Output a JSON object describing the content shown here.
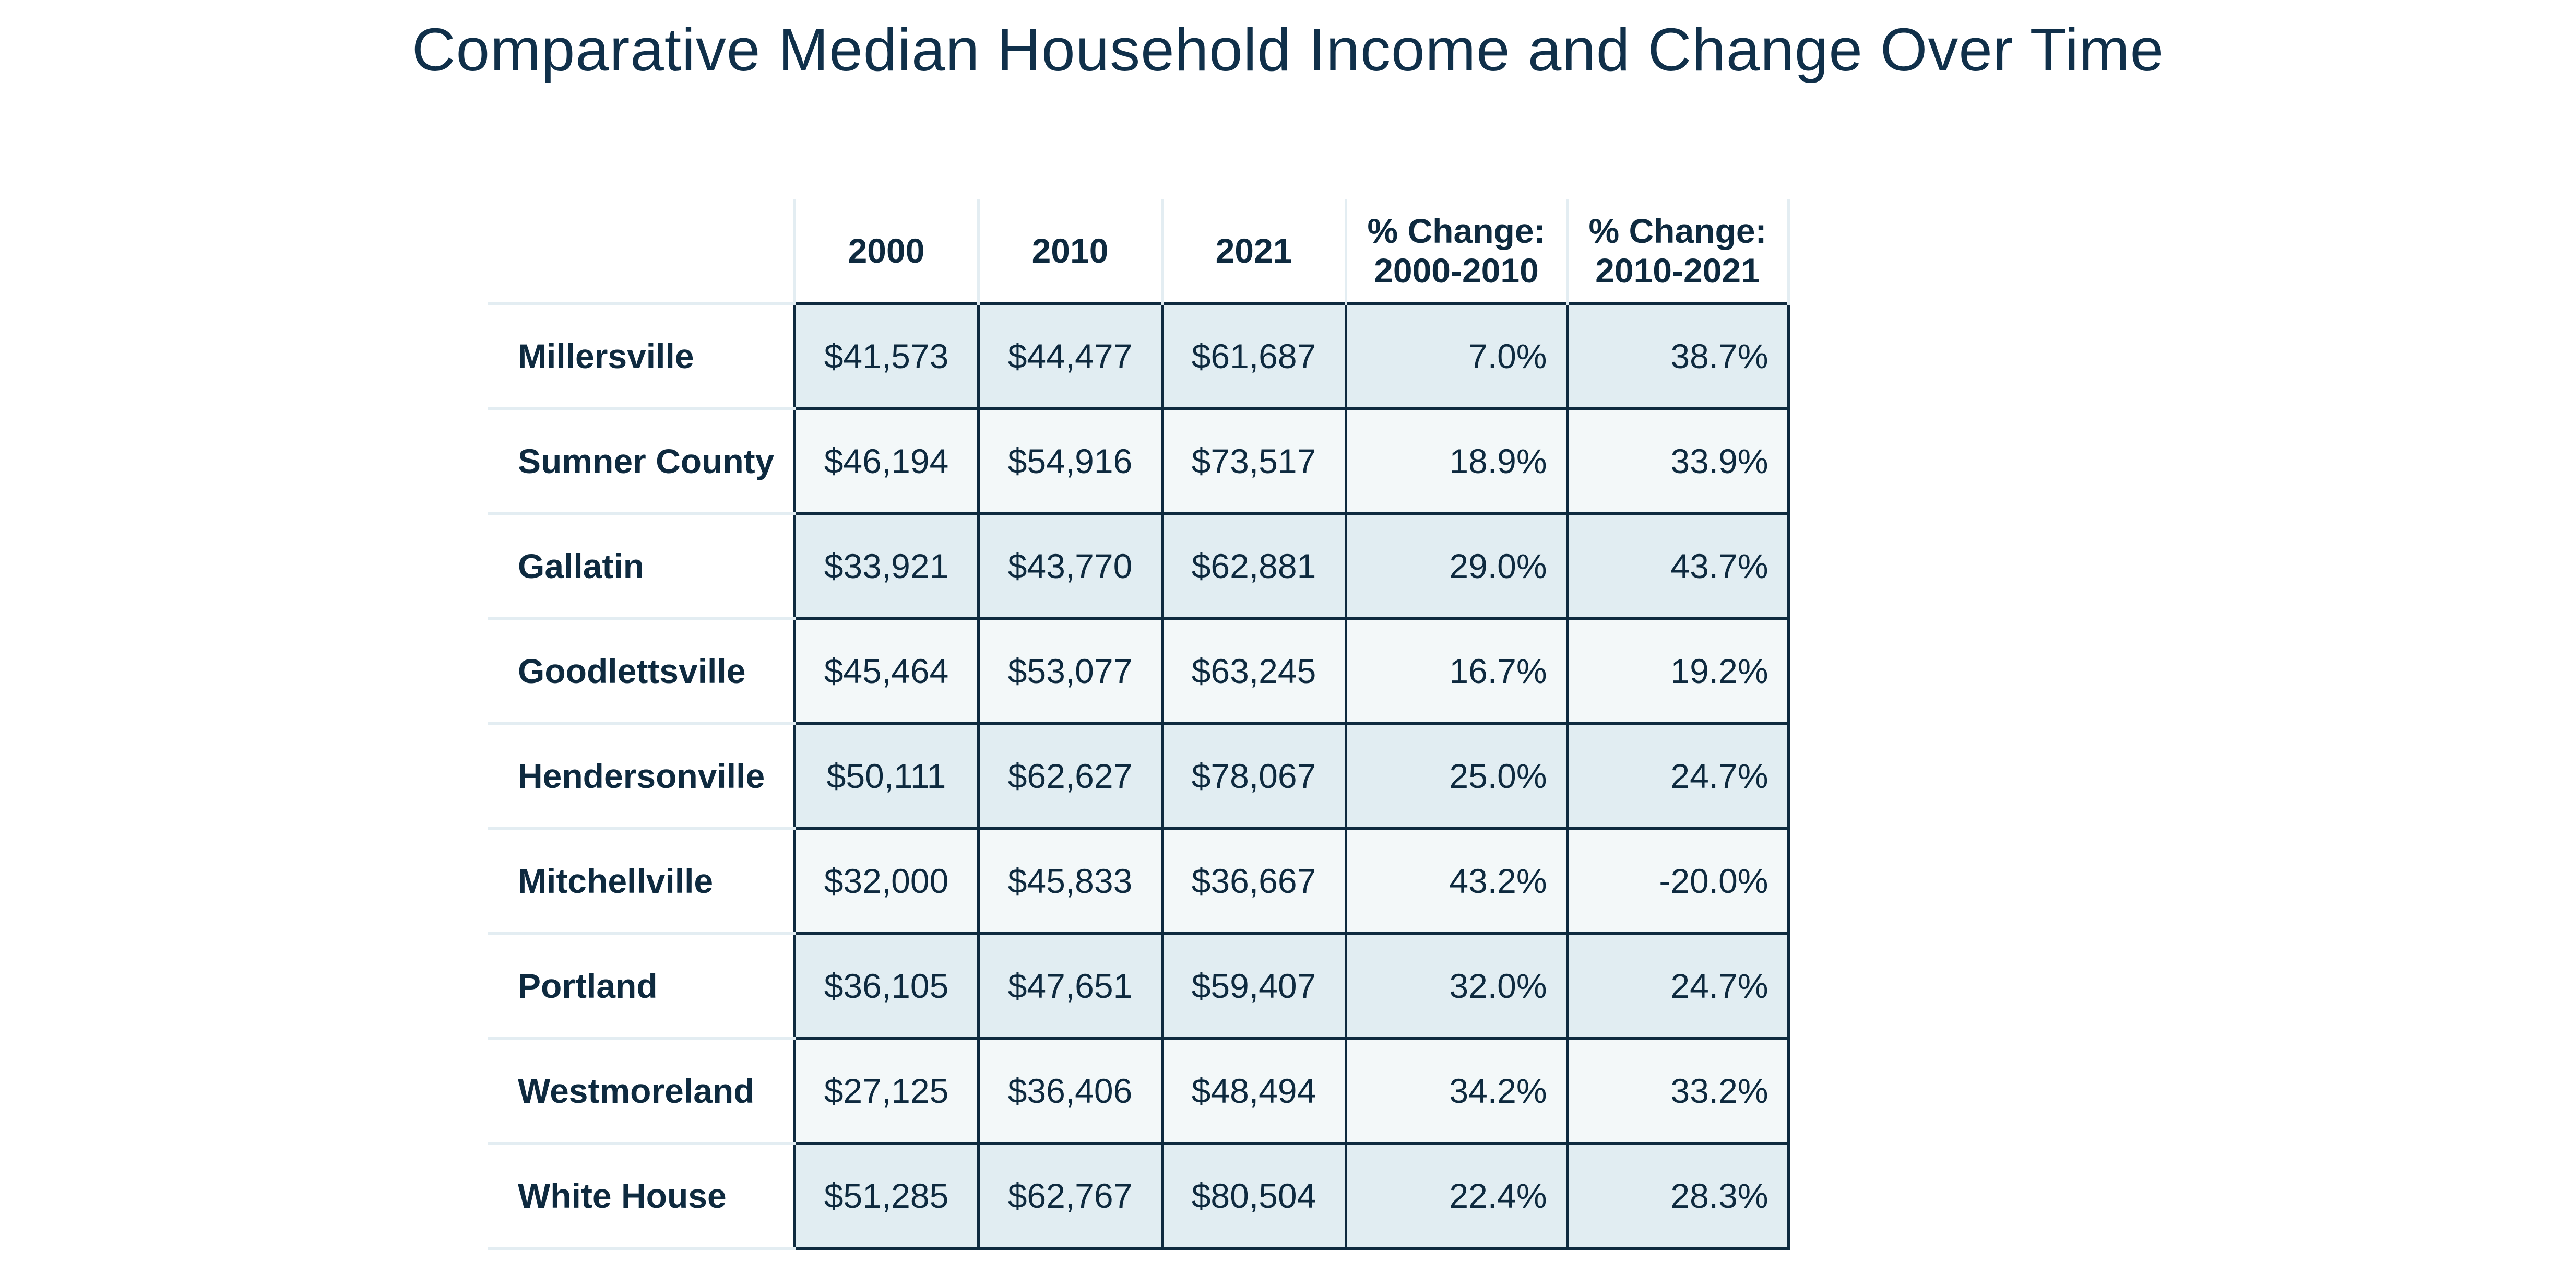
{
  "title": "Comparative Median Household Income and Change Over Time",
  "table": {
    "headers": {
      "corner": "",
      "y2000": "2000",
      "y2010": "2010",
      "y2021": "2021",
      "pct1_line1": "% Change:",
      "pct1_line2": "2000-2010",
      "pct2_line1": "% Change:",
      "pct2_line2": "2010-2021"
    },
    "rows": [
      {
        "place": "Millersville",
        "y2000": "$41,573",
        "y2010": "$44,477",
        "y2021": "$61,687",
        "pct1": "7.0%",
        "pct2": "38.7%"
      },
      {
        "place": "Sumner County",
        "y2000": "$46,194",
        "y2010": "$54,916",
        "y2021": "$73,517",
        "pct1": "18.9%",
        "pct2": "33.9%"
      },
      {
        "place": "Gallatin",
        "y2000": "$33,921",
        "y2010": "$43,770",
        "y2021": "$62,881",
        "pct1": "29.0%",
        "pct2": "43.7%"
      },
      {
        "place": "Goodlettsville",
        "y2000": "$45,464",
        "y2010": "$53,077",
        "y2021": "$63,245",
        "pct1": "16.7%",
        "pct2": "19.2%"
      },
      {
        "place": "Hendersonville",
        "y2000": "$50,111",
        "y2010": "$62,627",
        "y2021": "$78,067",
        "pct1": "25.0%",
        "pct2": "24.7%"
      },
      {
        "place": "Mitchellville",
        "y2000": "$32,000",
        "y2010": "$45,833",
        "y2021": "$36,667",
        "pct1": "43.2%",
        "pct2": "-20.0%"
      },
      {
        "place": "Portland",
        "y2000": "$36,105",
        "y2010": "$47,651",
        "y2021": "$59,407",
        "pct1": "32.0%",
        "pct2": "24.7%"
      },
      {
        "place": "Westmoreland",
        "y2000": "$27,125",
        "y2010": "$36,406",
        "y2021": "$48,494",
        "pct1": "34.2%",
        "pct2": "33.2%"
      },
      {
        "place": "White House",
        "y2000": "$51,285",
        "y2010": "$62,767",
        "y2021": "$80,504",
        "pct1": "22.4%",
        "pct2": "28.3%"
      }
    ]
  },
  "colors": {
    "text": "#0e2a3f",
    "row_band_dark": "#e1edf2",
    "row_band_light": "#f3f8f9",
    "grid_line": "#0e2a3f",
    "header_divider": "#e3edf2"
  }
}
